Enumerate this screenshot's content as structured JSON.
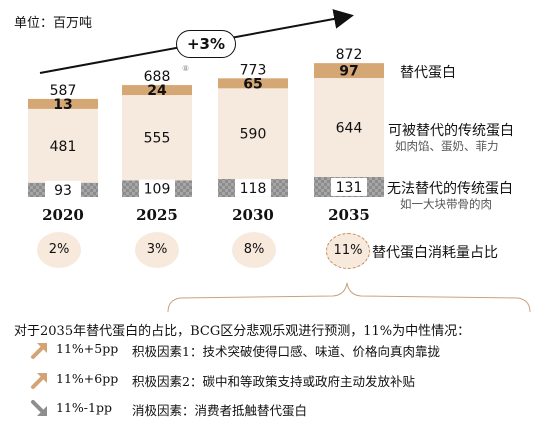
{
  "unit_label": "单位：百万吨",
  "growth_label": "+3%",
  "colors": {
    "alt": "#d4a775",
    "replaceable": "#f6e9de",
    "non_replaceable": "#8c8c8c",
    "share_bg": "#f7e9dc",
    "accent": "#c28b5a",
    "arrow_up": "#d3a374",
    "arrow_down": "#8e8e8e"
  },
  "chart_data": {
    "type": "bar",
    "stacked": true,
    "categories": [
      "2020",
      "2025",
      "2030",
      "2035"
    ],
    "totals": [
      "587",
      "688",
      "773",
      "872"
    ],
    "series": [
      {
        "name": "无法替代的传统蛋白",
        "sub": "如一大块带骨的肉",
        "values": [
          93,
          109,
          118,
          131
        ]
      },
      {
        "name": "可被替代的传统蛋白",
        "sub": "如肉馅、蛋奶、菲力",
        "values": [
          481,
          555,
          590,
          644
        ]
      },
      {
        "name": "替代蛋白",
        "values": [
          13,
          24,
          65,
          97
        ]
      }
    ],
    "share_title": "替代蛋白消耗量占比",
    "share_values": [
      "2%",
      "3%",
      "8%",
      "11%"
    ],
    "footnote_marker": "⑧"
  },
  "notes": {
    "title": "对于2035年替代蛋白的占比，BCG区分悲观乐观进行预测，11%为中性情况：",
    "items": [
      {
        "direction": "up",
        "change": "11%+5pp",
        "text": "积极因素1：技术突破使得口感、味道、价格向真肉靠拢"
      },
      {
        "direction": "up",
        "change": "11%+6pp",
        "text": "积极因素2：碳中和等政策支持或政府主动发放补贴"
      },
      {
        "direction": "down",
        "change": "11%-1pp",
        "text": "消极因素：消费者抵触替代蛋白"
      }
    ]
  }
}
